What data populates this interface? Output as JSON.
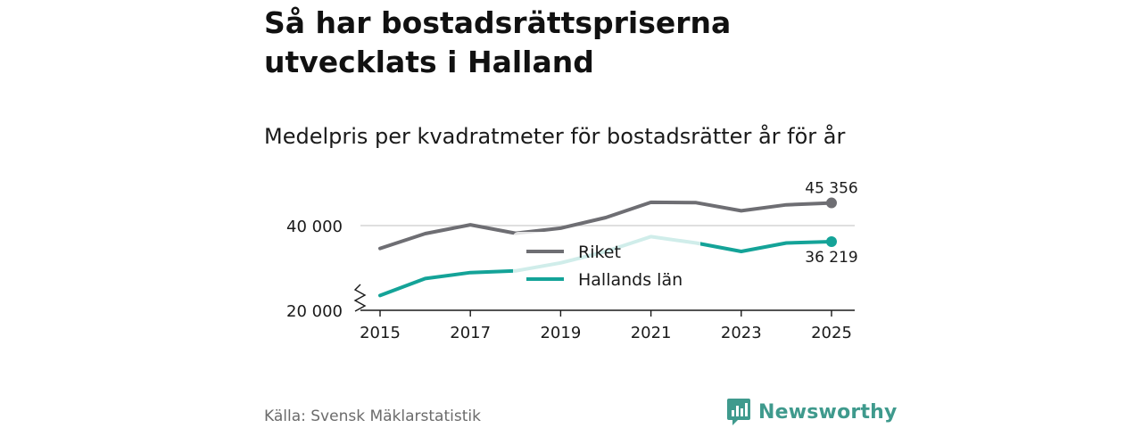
{
  "title": "Så har bostadsrättspriserna utvecklats i Halland",
  "subtitle": "Medelpris per kvadratmeter för bostadsrätter år för år",
  "source": "Källa: Svensk Mäklarstatistik",
  "brand": {
    "name": "Newsworthy",
    "icon": "newsworthy-logo-icon",
    "color": "#3f9a8d"
  },
  "colors": {
    "riket": "#6e6e73",
    "halland": "#14a398",
    "grid": "#cccccc",
    "axis": "#1a1a1a"
  },
  "chart_data": {
    "type": "line",
    "title": "Så har bostadsrättspriserna utvecklats i Halland",
    "subtitle": "Medelpris per kvadratmeter för bostadsrätter år för år",
    "xlabel": "",
    "ylabel": "",
    "x": [
      2015,
      2016,
      2017,
      2018,
      2019,
      2020,
      2021,
      2022,
      2023,
      2024,
      2025
    ],
    "xticks": [
      "2015",
      "2017",
      "2019",
      "2021",
      "2023",
      "2025"
    ],
    "yticks": [
      {
        "value": 20000,
        "label": "20 000"
      },
      {
        "value": 40000,
        "label": "40 000"
      }
    ],
    "ylim": [
      20000,
      45356
    ],
    "grid": true,
    "axis_break": true,
    "legend": "center",
    "series": [
      {
        "name": "Riket",
        "values": [
          34600,
          38100,
          40200,
          38200,
          39400,
          41900,
          45500,
          45400,
          43500,
          44900,
          45356
        ],
        "end_label": "45 356"
      },
      {
        "name": "Hallands län",
        "values": [
          23500,
          27500,
          28900,
          29300,
          31200,
          33900,
          37400,
          35900,
          33900,
          35900,
          36219
        ],
        "end_label": "36 219"
      }
    ]
  }
}
